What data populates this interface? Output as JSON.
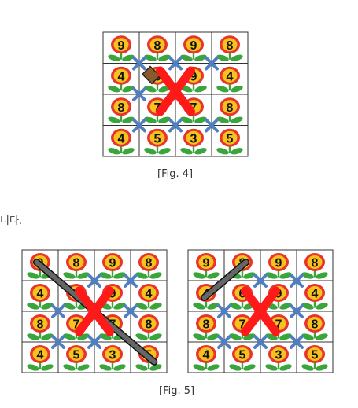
{
  "colors": {
    "grid": "#333333",
    "petal": "#e8352c",
    "center": "#f7c21d",
    "leaf": "#3aa53a",
    "blue_x": "#4f7fc0",
    "red_x": "#ff1a1a",
    "line_fill": "#666666",
    "line_outline": "#111111"
  },
  "figure4": {
    "caption": "[Fig. 4]",
    "grid": [
      [
        9,
        8,
        9,
        8
      ],
      [
        4,
        6,
        9,
        4
      ],
      [
        8,
        7,
        7,
        8
      ],
      [
        4,
        5,
        3,
        5
      ]
    ]
  },
  "body_text": "니다.",
  "figure5": {
    "caption": "[Fig. 5]",
    "left_grid": [
      [
        9,
        8,
        9,
        8
      ],
      [
        4,
        6,
        9,
        4
      ],
      [
        8,
        7,
        7,
        8
      ],
      [
        4,
        5,
        3,
        5
      ]
    ],
    "right_grid": [
      [
        9,
        8,
        9,
        8
      ],
      [
        4,
        6,
        9,
        4
      ],
      [
        8,
        7,
        7,
        8
      ],
      [
        4,
        5,
        3,
        5
      ]
    ]
  }
}
